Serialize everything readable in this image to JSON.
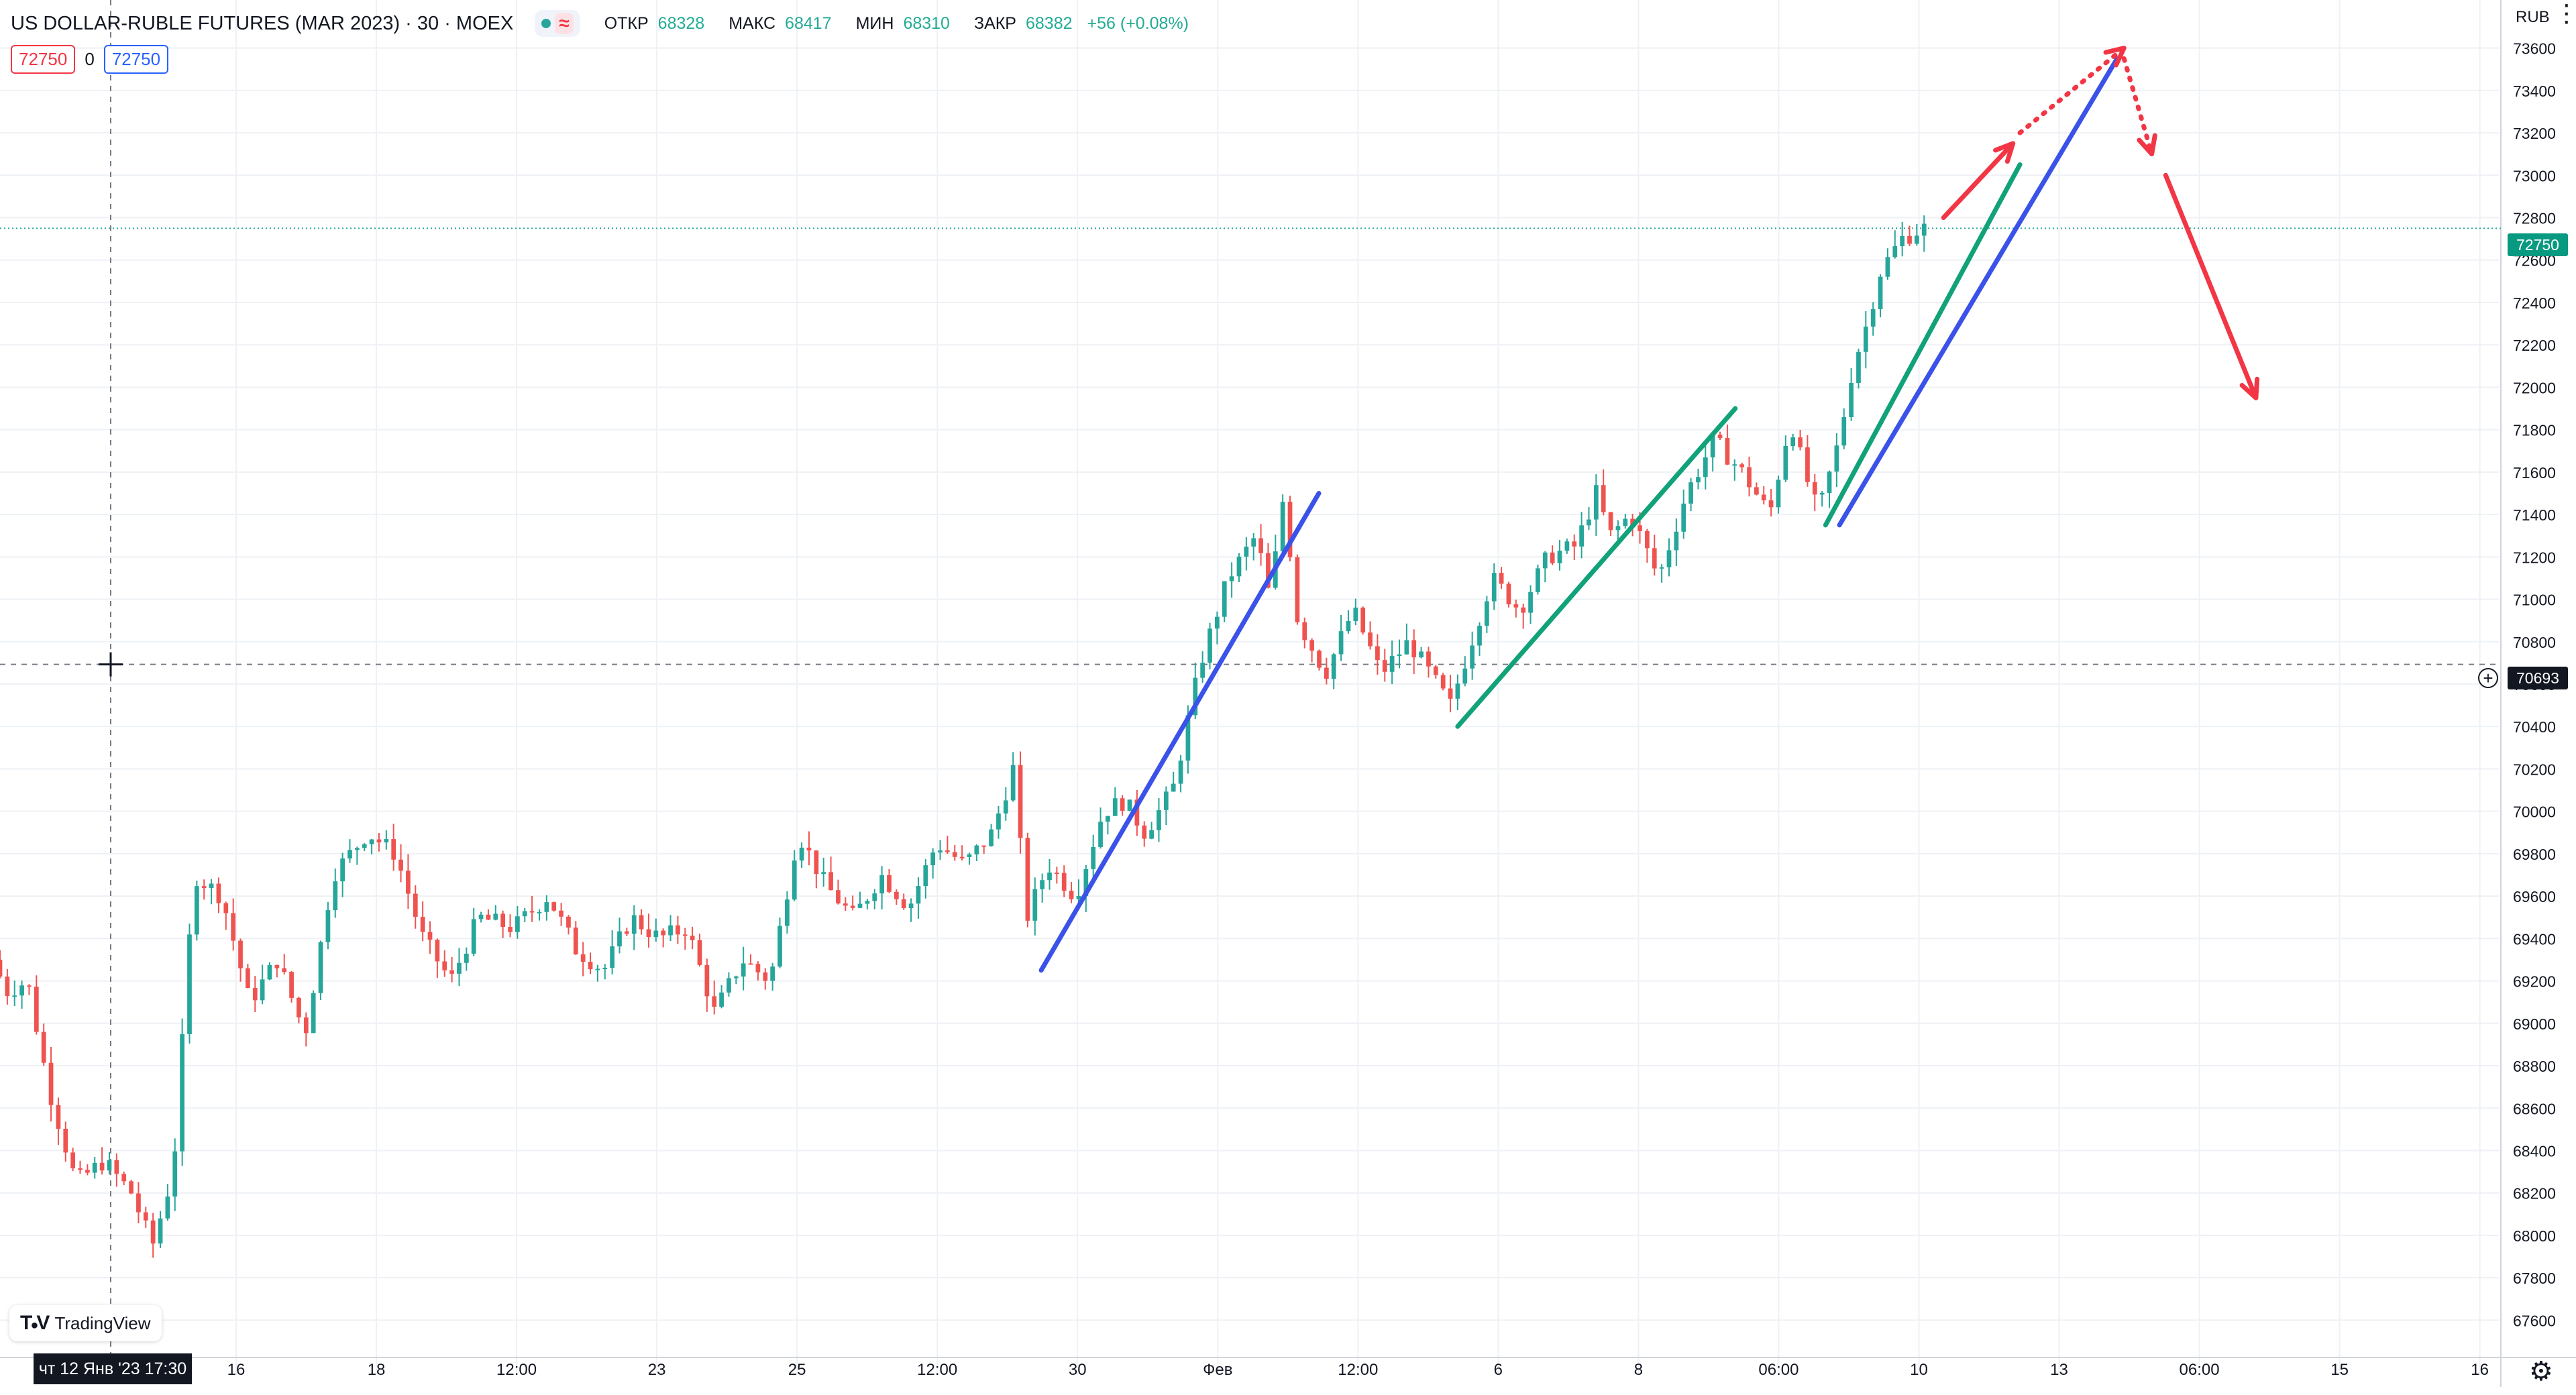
{
  "header": {
    "title": "US DOLLAR-RUBLE FUTURES (MAR 2023) · 30 · MOEX",
    "open_label": "ОТКР",
    "open_value": "68328",
    "high_label": "МАКС",
    "high_value": "68417",
    "low_label": "МИН",
    "low_value": "68310",
    "close_label": "ЗАКР",
    "close_value": "68382",
    "change": "+56 (+0.08%)",
    "approx_sign": "≈"
  },
  "order_panel": {
    "sell": "72750",
    "spread": "0",
    "buy": "72750"
  },
  "currency": "RUB",
  "brand": "TradingView",
  "last_price_label": "72750",
  "crosshair": {
    "price_label": "70693",
    "time_label": "чт 12 Янв '23   17:30"
  },
  "colors": {
    "up": "#26a69a",
    "down": "#ef5350",
    "blue_line": "#3b52e8",
    "green_line": "#12a27a",
    "red_arrow": "#f23645",
    "grid": "#eef1f5"
  },
  "chart_data": {
    "type": "candlestick",
    "title": "US DOLLAR-RUBLE FUTURES (MAR 2023) · 30 · MOEX",
    "x_tick_labels": [
      "16",
      "18",
      "12:00",
      "23",
      "25",
      "12:00",
      "30",
      "Фев",
      "12:00",
      "6",
      "8",
      "06:00",
      "10",
      "13",
      "06:00",
      "15",
      "16"
    ],
    "y_ticks": [
      67600,
      67800,
      68000,
      68200,
      68400,
      68600,
      68800,
      69000,
      69200,
      69400,
      69600,
      69800,
      70000,
      70200,
      70400,
      70600,
      70800,
      71000,
      71200,
      71400,
      71600,
      71800,
      72000,
      72200,
      72400,
      72600,
      72800,
      73000,
      73200,
      73400,
      73600
    ],
    "ylim": [
      67500,
      73700
    ],
    "grid": true,
    "last_price": 72750,
    "crosshair_price": 70693,
    "price_path": [
      [
        0,
        69300
      ],
      [
        0.02,
        69150
      ],
      [
        0.05,
        69200
      ],
      [
        0.08,
        68700
      ],
      [
        0.12,
        68250
      ],
      [
        0.16,
        68350
      ],
      [
        0.2,
        68200
      ],
      [
        0.23,
        67950
      ],
      [
        0.26,
        68300
      ],
      [
        0.29,
        69700
      ],
      [
        0.33,
        69600
      ],
      [
        0.37,
        69100
      ],
      [
        0.41,
        69300
      ],
      [
        0.45,
        68950
      ],
      [
        0.49,
        69700
      ],
      [
        0.54,
        69900
      ],
      [
        0.58,
        69800
      ],
      [
        0.62,
        69400
      ],
      [
        0.66,
        69200
      ],
      [
        0.7,
        69500
      ],
      [
        0.75,
        69450
      ],
      [
        0.8,
        69600
      ],
      [
        0.84,
        69350
      ],
      [
        0.88,
        69250
      ],
      [
        0.92,
        69500
      ],
      [
        0.96,
        69400
      ],
      [
        1.0,
        69450
      ],
      [
        1.04,
        69050
      ],
      [
        1.08,
        69300
      ],
      [
        1.12,
        69200
      ],
      [
        1.16,
        69900
      ],
      [
        1.2,
        69650
      ],
      [
        1.24,
        69500
      ],
      [
        1.28,
        69700
      ],
      [
        1.32,
        69550
      ],
      [
        1.36,
        69850
      ],
      [
        1.4,
        69750
      ],
      [
        1.44,
        69900
      ],
      [
        1.47,
        70200
      ],
      [
        1.49,
        69500
      ],
      [
        1.52,
        69750
      ],
      [
        1.56,
        69600
      ],
      [
        1.6,
        70000
      ],
      [
        1.63,
        70050
      ],
      [
        1.66,
        69900
      ],
      [
        1.7,
        70100
      ],
      [
        1.74,
        70700
      ],
      [
        1.78,
        71100
      ],
      [
        1.82,
        71300
      ],
      [
        1.84,
        71000
      ],
      [
        1.86,
        71500
      ],
      [
        1.88,
        70900
      ],
      [
        1.92,
        70650
      ],
      [
        1.96,
        70950
      ],
      [
        2.0,
        70650
      ],
      [
        2.04,
        70800
      ],
      [
        2.08,
        70600
      ],
      [
        2.1,
        70500
      ],
      [
        2.12,
        70700
      ],
      [
        2.16,
        71100
      ],
      [
        2.2,
        70950
      ],
      [
        2.24,
        71200
      ],
      [
        2.28,
        71250
      ],
      [
        2.31,
        71500
      ],
      [
        2.33,
        71300
      ],
      [
        2.36,
        71400
      ],
      [
        2.4,
        71100
      ],
      [
        2.44,
        71500
      ],
      [
        2.48,
        71750
      ],
      [
        2.52,
        71600
      ],
      [
        2.56,
        71400
      ],
      [
        2.59,
        71850
      ],
      [
        2.61,
        71600
      ],
      [
        2.63,
        71400
      ],
      [
        2.66,
        71750
      ],
      [
        2.68,
        72100
      ],
      [
        2.7,
        72300
      ],
      [
        2.72,
        72550
      ],
      [
        2.75,
        72700
      ],
      [
        2.78,
        72750
      ]
    ],
    "annotations": [
      {
        "kind": "line",
        "color": "blue",
        "from": [
          1.5,
          69250
        ],
        "to": [
          1.9,
          71500
        ]
      },
      {
        "kind": "line",
        "color": "green",
        "from": [
          2.1,
          70400
        ],
        "to": [
          2.5,
          71900
        ]
      },
      {
        "kind": "line",
        "color": "green",
        "from": [
          2.63,
          71350
        ],
        "to": [
          2.91,
          73050
        ]
      },
      {
        "kind": "line",
        "color": "blue",
        "from": [
          2.65,
          71350
        ],
        "to": [
          3.05,
          73550
        ]
      },
      {
        "kind": "arrow",
        "color": "red",
        "style": "solid",
        "from": [
          2.8,
          72800
        ],
        "to": [
          2.9,
          73150
        ]
      },
      {
        "kind": "arrow",
        "color": "red",
        "style": "dotted",
        "from": [
          2.91,
          73200
        ],
        "to": [
          3.06,
          73600
        ]
      },
      {
        "kind": "arrow",
        "color": "red",
        "style": "dotted",
        "from": [
          3.06,
          73550
        ],
        "to": [
          3.1,
          73100
        ]
      },
      {
        "kind": "arrow",
        "color": "red",
        "style": "solid",
        "from": [
          3.12,
          73000
        ],
        "to": [
          3.25,
          71950
        ]
      }
    ]
  }
}
